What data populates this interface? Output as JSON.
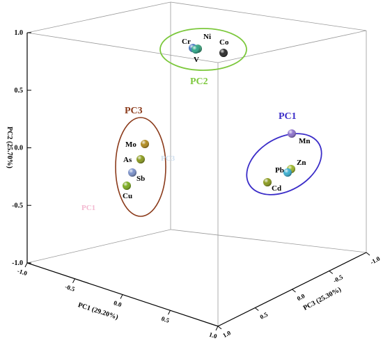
{
  "chart_data": {
    "type": "scatter3d",
    "axes": {
      "x": {
        "label": "PC1 (29.20%)",
        "ticks": [
          "-1.0",
          "-0.5",
          "0.0",
          "0.5",
          "1.0"
        ]
      },
      "y": {
        "label": "PC2 (25.70%)",
        "ticks": [
          "-1.0",
          "-0.5",
          "0.0",
          "0.5",
          "1.0"
        ]
      },
      "z": {
        "label": "PC3 (25.30%)",
        "ticks": [
          "1.0",
          "0.5",
          "0.0",
          "-0.5",
          "-1.0"
        ]
      }
    },
    "points": [
      {
        "name": "Cr",
        "group": "PC2",
        "color": "#4a78c0",
        "x": 0.15,
        "y": 0.95,
        "z": 0.05
      },
      {
        "name": "Ni",
        "group": "PC2",
        "color": "#3aa07a",
        "x": 0.2,
        "y": 0.95,
        "z": 0.05
      },
      {
        "name": "V",
        "group": "PC2",
        "color": "#2fa88a",
        "x": 0.18,
        "y": 0.93,
        "z": 0.08
      },
      {
        "name": "Co",
        "group": "PC2",
        "color": "#2a2a2a",
        "x": 0.35,
        "y": 0.9,
        "z": -0.05
      },
      {
        "name": "Mo",
        "group": "PC3",
        "color": "#b08a1e",
        "x": -0.4,
        "y": 0.3,
        "z": 0.6
      },
      {
        "name": "As",
        "group": "PC3",
        "color": "#8a9a1e",
        "x": -0.45,
        "y": 0.15,
        "z": 0.6
      },
      {
        "name": "Sb",
        "group": "PC3",
        "color": "#7a90c8",
        "x": -0.48,
        "y": 0.05,
        "z": 0.6
      },
      {
        "name": "Cu",
        "group": "PC3",
        "color": "#7aaa1e",
        "x": -0.5,
        "y": -0.05,
        "z": 0.6
      },
      {
        "name": "Mn",
        "group": "PC1",
        "color": "#8f74cc",
        "x": 0.8,
        "y": 0.2,
        "z": -0.6
      },
      {
        "name": "Zn",
        "group": "PC1",
        "color": "#9ab42a",
        "x": 0.85,
        "y": 0.05,
        "z": -0.6
      },
      {
        "name": "Pb",
        "group": "PC1",
        "color": "#3aaed0",
        "x": 0.8,
        "y": 0.02,
        "z": -0.55
      },
      {
        "name": "Cd",
        "group": "PC1",
        "color": "#8a9a1e",
        "x": 0.7,
        "y": -0.02,
        "z": -0.5
      }
    ],
    "groups": [
      {
        "name": "PC2",
        "color": "#7cc83c"
      },
      {
        "name": "PC3",
        "color": "#8b3a1a"
      },
      {
        "name": "PC1",
        "color": "#3a2cc8"
      }
    ],
    "faint_labels": [
      "PC1",
      "PC3"
    ]
  }
}
